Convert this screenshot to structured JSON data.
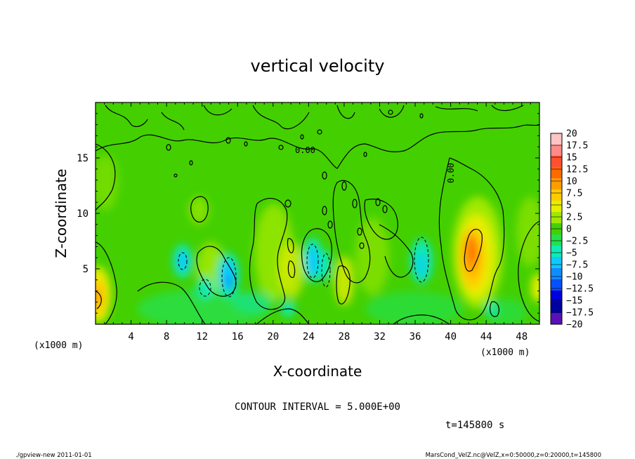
{
  "chart_data": {
    "type": "heatmap",
    "title": "vertical velocity",
    "xlabel": "X-coordinate",
    "ylabel": "Z-coordinate",
    "x_unit": "(x1000 m)",
    "y_unit": "(x1000 m)",
    "xlim": [
      0,
      50
    ],
    "ylim": [
      0,
      20
    ],
    "x_ticks": [
      "4",
      "8",
      "12",
      "16",
      "20",
      "24",
      "28",
      "32",
      "36",
      "40",
      "44",
      "48"
    ],
    "y_ticks": [
      "5",
      "10",
      "15"
    ],
    "contour_label": "0.00",
    "contour_interval_text": "CONTOUR INTERVAL = 5.000E+00",
    "time_text": "t=145800 s",
    "colorbar": {
      "labels": [
        "20",
        "17.5",
        "15",
        "12.5",
        "10",
        "7.5",
        "5",
        "2.5",
        "0",
        "−2.5",
        "−5",
        "−7.5",
        "−10",
        "−12.5",
        "−15",
        "−17.5",
        "−20"
      ],
      "colors": [
        "#ffc4c4",
        "#ff8a8a",
        "#ff5030",
        "#ff6a00",
        "#ff9c00",
        "#ffcc00",
        "#e6ee00",
        "#a0e800",
        "#44d000",
        "#24e04c",
        "#10eab4",
        "#10c8ff",
        "#108cff",
        "#0850ff",
        "#0000dc",
        "#0000a0",
        "#5a10b8"
      ]
    },
    "features": [
      {
        "type": "updraft",
        "x": 42.5,
        "z": 7.5,
        "peak": 12
      },
      {
        "type": "updraft",
        "x": 0.5,
        "z": 2.5,
        "peak": 8
      },
      {
        "type": "downdraft",
        "x": 15,
        "z": 4.5,
        "peak": -8
      },
      {
        "type": "downdraft",
        "x": 10,
        "z": 6,
        "peak": -6
      },
      {
        "type": "downdraft",
        "x": 24.5,
        "z": 6,
        "peak": -6
      },
      {
        "type": "downdraft",
        "x": 36,
        "z": 6,
        "peak": -5
      }
    ]
  },
  "footer": {
    "left": "./gpview-new   2011-01-01",
    "right": "MarsCond_VelZ.nc@VelZ,x=0:50000,z=0:20000,t=145800"
  }
}
